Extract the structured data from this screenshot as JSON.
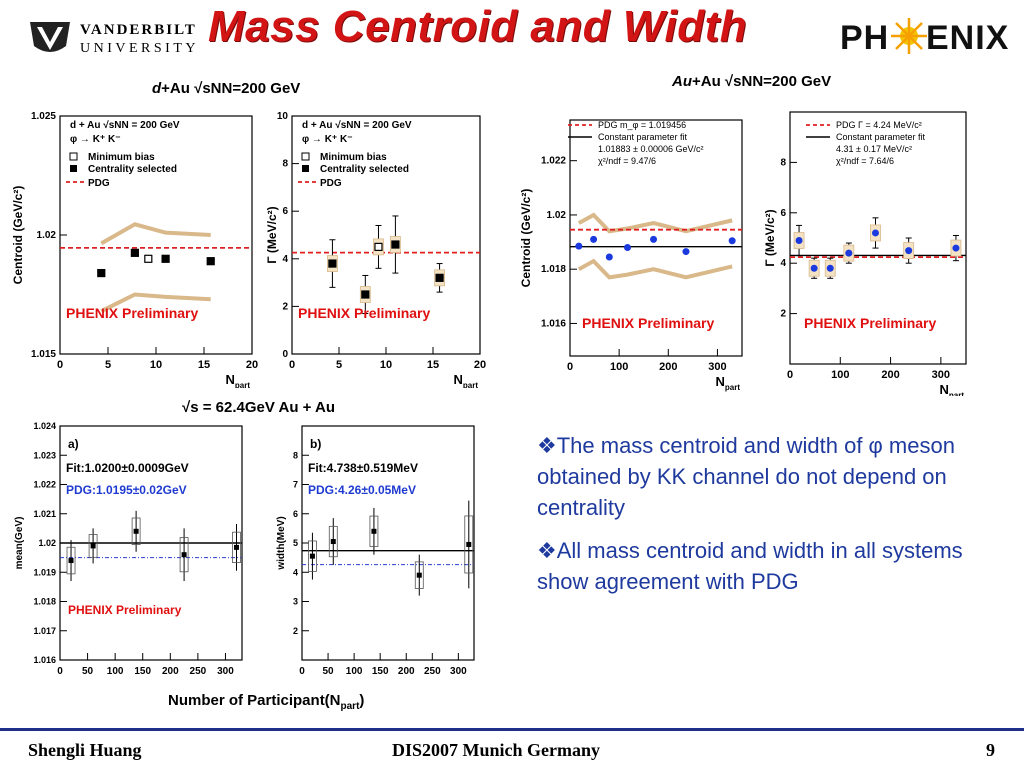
{
  "slide": {
    "title": "Mass Centroid and Width",
    "vanderbilt_line1": "VANDERBILT",
    "vanderbilt_line2": "UNIVERSITY",
    "phenix_logo": "PHENIX",
    "header_dau_a": "d",
    "header_dau_b": "+Au √sNN=200 GeV",
    "header_auau_a": "Au",
    "header_auau_b": "+Au √sNN=200 GeV",
    "header_62": "√s = 62.4GeV Au + Au",
    "bullet1": "❖The mass centroid and width of φ meson obtained by KK channel do not depend on centrality",
    "bullet2": "❖All mass centroid and width in all systems show agreement with PDG",
    "footer_left": "Shengli Huang",
    "footer_center": "DIS2007 Munich Germany",
    "footer_right": "9",
    "colors": {
      "title": "#d21414",
      "bullet": "#1f3a9e",
      "pdg": "#e02020",
      "phenix_prelim": "#e01010",
      "band": "#d9b88a",
      "blue": "#1a3adf"
    }
  },
  "chart_data": [
    {
      "type": "scatter",
      "panel": "dAu-centroid",
      "ylabel": "Centroid (GeV/c²)",
      "xlabel": "N_part",
      "xlim": [
        0,
        20
      ],
      "ylim": [
        1.015,
        1.025
      ],
      "xticks": [
        0,
        5,
        10,
        15,
        20
      ],
      "yticks": [
        1.015,
        1.02,
        1.025
      ],
      "legend": [
        "d + Au √sNN = 200 GeV",
        "φ → K⁺ K⁻",
        "Minimum bias",
        "Centrality selected",
        "PDG"
      ],
      "annotation": "PHENIX Preliminary",
      "pdg": 1.01946,
      "series": [
        {
          "name": "Centrality selected",
          "x": [
            4.3,
            7.8,
            11.0,
            15.7
          ],
          "y": [
            1.0184,
            1.01925,
            1.019,
            1.0189
          ]
        },
        {
          "name": "Minimum bias",
          "x": [
            9.2
          ],
          "y": [
            1.019
          ]
        }
      ],
      "band_upper": {
        "x": [
          4.3,
          7.8,
          11.0,
          15.7
        ],
        "y": [
          1.01965,
          1.02045,
          1.0201,
          1.02
        ]
      },
      "band_lower": {
        "x": [
          4.3,
          7.8,
          11.0,
          15.7
        ],
        "y": [
          1.0168,
          1.0175,
          1.0174,
          1.0173
        ]
      }
    },
    {
      "type": "scatter",
      "panel": "dAu-width",
      "ylabel": "Γ (MeV/c²)",
      "xlabel": "N_part",
      "xlim": [
        0,
        20
      ],
      "ylim": [
        0,
        10
      ],
      "xticks": [
        0,
        5,
        10,
        15,
        20
      ],
      "yticks": [
        0,
        2,
        4,
        6,
        8,
        10
      ],
      "legend": [
        "d + Au √sNN = 200 GeV",
        "φ → K⁺ K⁻",
        "Minimum bias",
        "Centrality selected",
        "PDG"
      ],
      "annotation": "PHENIX Preliminary",
      "pdg": 4.26,
      "series": [
        {
          "name": "Centrality selected",
          "x": [
            4.3,
            7.8,
            11.0,
            15.7
          ],
          "y": [
            3.8,
            2.5,
            4.6,
            3.2
          ],
          "err": [
            1.0,
            0.8,
            1.2,
            0.6
          ]
        },
        {
          "name": "Minimum bias",
          "x": [
            9.2
          ],
          "y": [
            4.5
          ],
          "err": [
            0.9
          ]
        }
      ]
    },
    {
      "type": "scatter",
      "panel": "AuAu-centroid",
      "ylabel": "Centroid (GeV/c²)",
      "xlabel": "N_part",
      "xlim": [
        0,
        350
      ],
      "ylim": [
        1.0148,
        1.0235
      ],
      "xticks": [
        0,
        100,
        200,
        300
      ],
      "yticks": [
        1.016,
        1.018,
        1.02,
        1.022
      ],
      "legend": [
        "PDG m_φ = 1.019456",
        "Constant parameter fit",
        "1.01883 ± 0.00006 GeV/c²",
        "χ²/ndf = 9.47/6"
      ],
      "annotation": "PHENIX Preliminary",
      "pdg": 1.019456,
      "fit": 1.01883,
      "series": [
        {
          "name": "Au+Au",
          "x": [
            18,
            48,
            80,
            117,
            170,
            236,
            330
          ],
          "y": [
            1.01885,
            1.0191,
            1.01845,
            1.0188,
            1.0191,
            1.01865,
            1.01905
          ]
        }
      ],
      "band_upper": {
        "x": [
          18,
          48,
          80,
          117,
          170,
          236,
          330
        ],
        "y": [
          1.0197,
          1.02,
          1.0194,
          1.0195,
          1.0197,
          1.0194,
          1.0198
        ]
      },
      "band_lower": {
        "x": [
          18,
          48,
          80,
          117,
          170,
          236,
          330
        ],
        "y": [
          1.018,
          1.0183,
          1.0177,
          1.0178,
          1.018,
          1.0177,
          1.0181
        ]
      }
    },
    {
      "type": "scatter",
      "panel": "AuAu-width",
      "ylabel": "Γ (MeV/c²)",
      "xlabel": "N_part",
      "xlim": [
        0,
        350
      ],
      "ylim": [
        0,
        10
      ],
      "xticks": [
        0,
        100,
        200,
        300
      ],
      "yticks": [
        2,
        4,
        6,
        8
      ],
      "legend": [
        "PDG Γ = 4.24 MeV/c²",
        "Constant parameter fit",
        "4.31 ± 0.17 MeV/c²",
        "χ²/ndf = 7.64/6"
      ],
      "annotation": "PHENIX Preliminary",
      "pdg": 4.24,
      "fit": 4.31,
      "series": [
        {
          "name": "Au+Au",
          "x": [
            18,
            48,
            80,
            117,
            170,
            236,
            330
          ],
          "y": [
            4.9,
            3.8,
            3.8,
            4.4,
            5.2,
            4.5,
            4.6
          ],
          "err": [
            0.6,
            0.4,
            0.4,
            0.4,
            0.6,
            0.5,
            0.5
          ]
        }
      ]
    },
    {
      "type": "scatter",
      "panel": "62GeV-mean",
      "label": "a)",
      "ylabel": "mean(GeV)",
      "xlabel": "Number of Participant(N_part)",
      "xlim": [
        0,
        330
      ],
      "ylim": [
        1.016,
        1.024
      ],
      "xticks": [
        0,
        50,
        100,
        150,
        200,
        250,
        300
      ],
      "yticks": [
        1.016,
        1.017,
        1.018,
        1.019,
        1.02,
        1.021,
        1.022,
        1.023,
        1.024
      ],
      "fit_text": "Fit:1.0200±0.0009GeV",
      "pdg_text": "PDG:1.0195±0.02GeV",
      "annotation": "PHENIX Preliminary",
      "pdg": 1.0195,
      "fit": 1.02,
      "series": [
        {
          "name": "62.4 GeV Au+Au",
          "x": [
            20,
            60,
            138,
            225,
            320
          ],
          "y": [
            1.0194,
            1.0199,
            1.0204,
            1.0196,
            1.01985
          ],
          "err": [
            0.0007,
            0.0006,
            0.0007,
            0.0009,
            0.0008
          ]
        }
      ]
    },
    {
      "type": "scatter",
      "panel": "62GeV-width",
      "label": "b)",
      "ylabel": "width(MeV)",
      "xlabel": "Number of Participant(N_part)",
      "xlim": [
        0,
        330
      ],
      "ylim": [
        1,
        9
      ],
      "xticks": [
        0,
        50,
        100,
        150,
        200,
        250,
        300
      ],
      "yticks": [
        2,
        3,
        4,
        5,
        6,
        7,
        8
      ],
      "fit_text": "Fit:4.738±0.519MeV",
      "pdg_text": "PDG:4.26±0.05MeV",
      "pdg": 4.26,
      "fit": 4.738,
      "series": [
        {
          "name": "62.4 GeV Au+Au",
          "x": [
            20,
            60,
            138,
            225,
            320
          ],
          "y": [
            4.55,
            5.05,
            5.4,
            3.9,
            4.95
          ],
          "err": [
            0.8,
            0.8,
            0.8,
            0.7,
            1.5
          ]
        }
      ]
    }
  ]
}
